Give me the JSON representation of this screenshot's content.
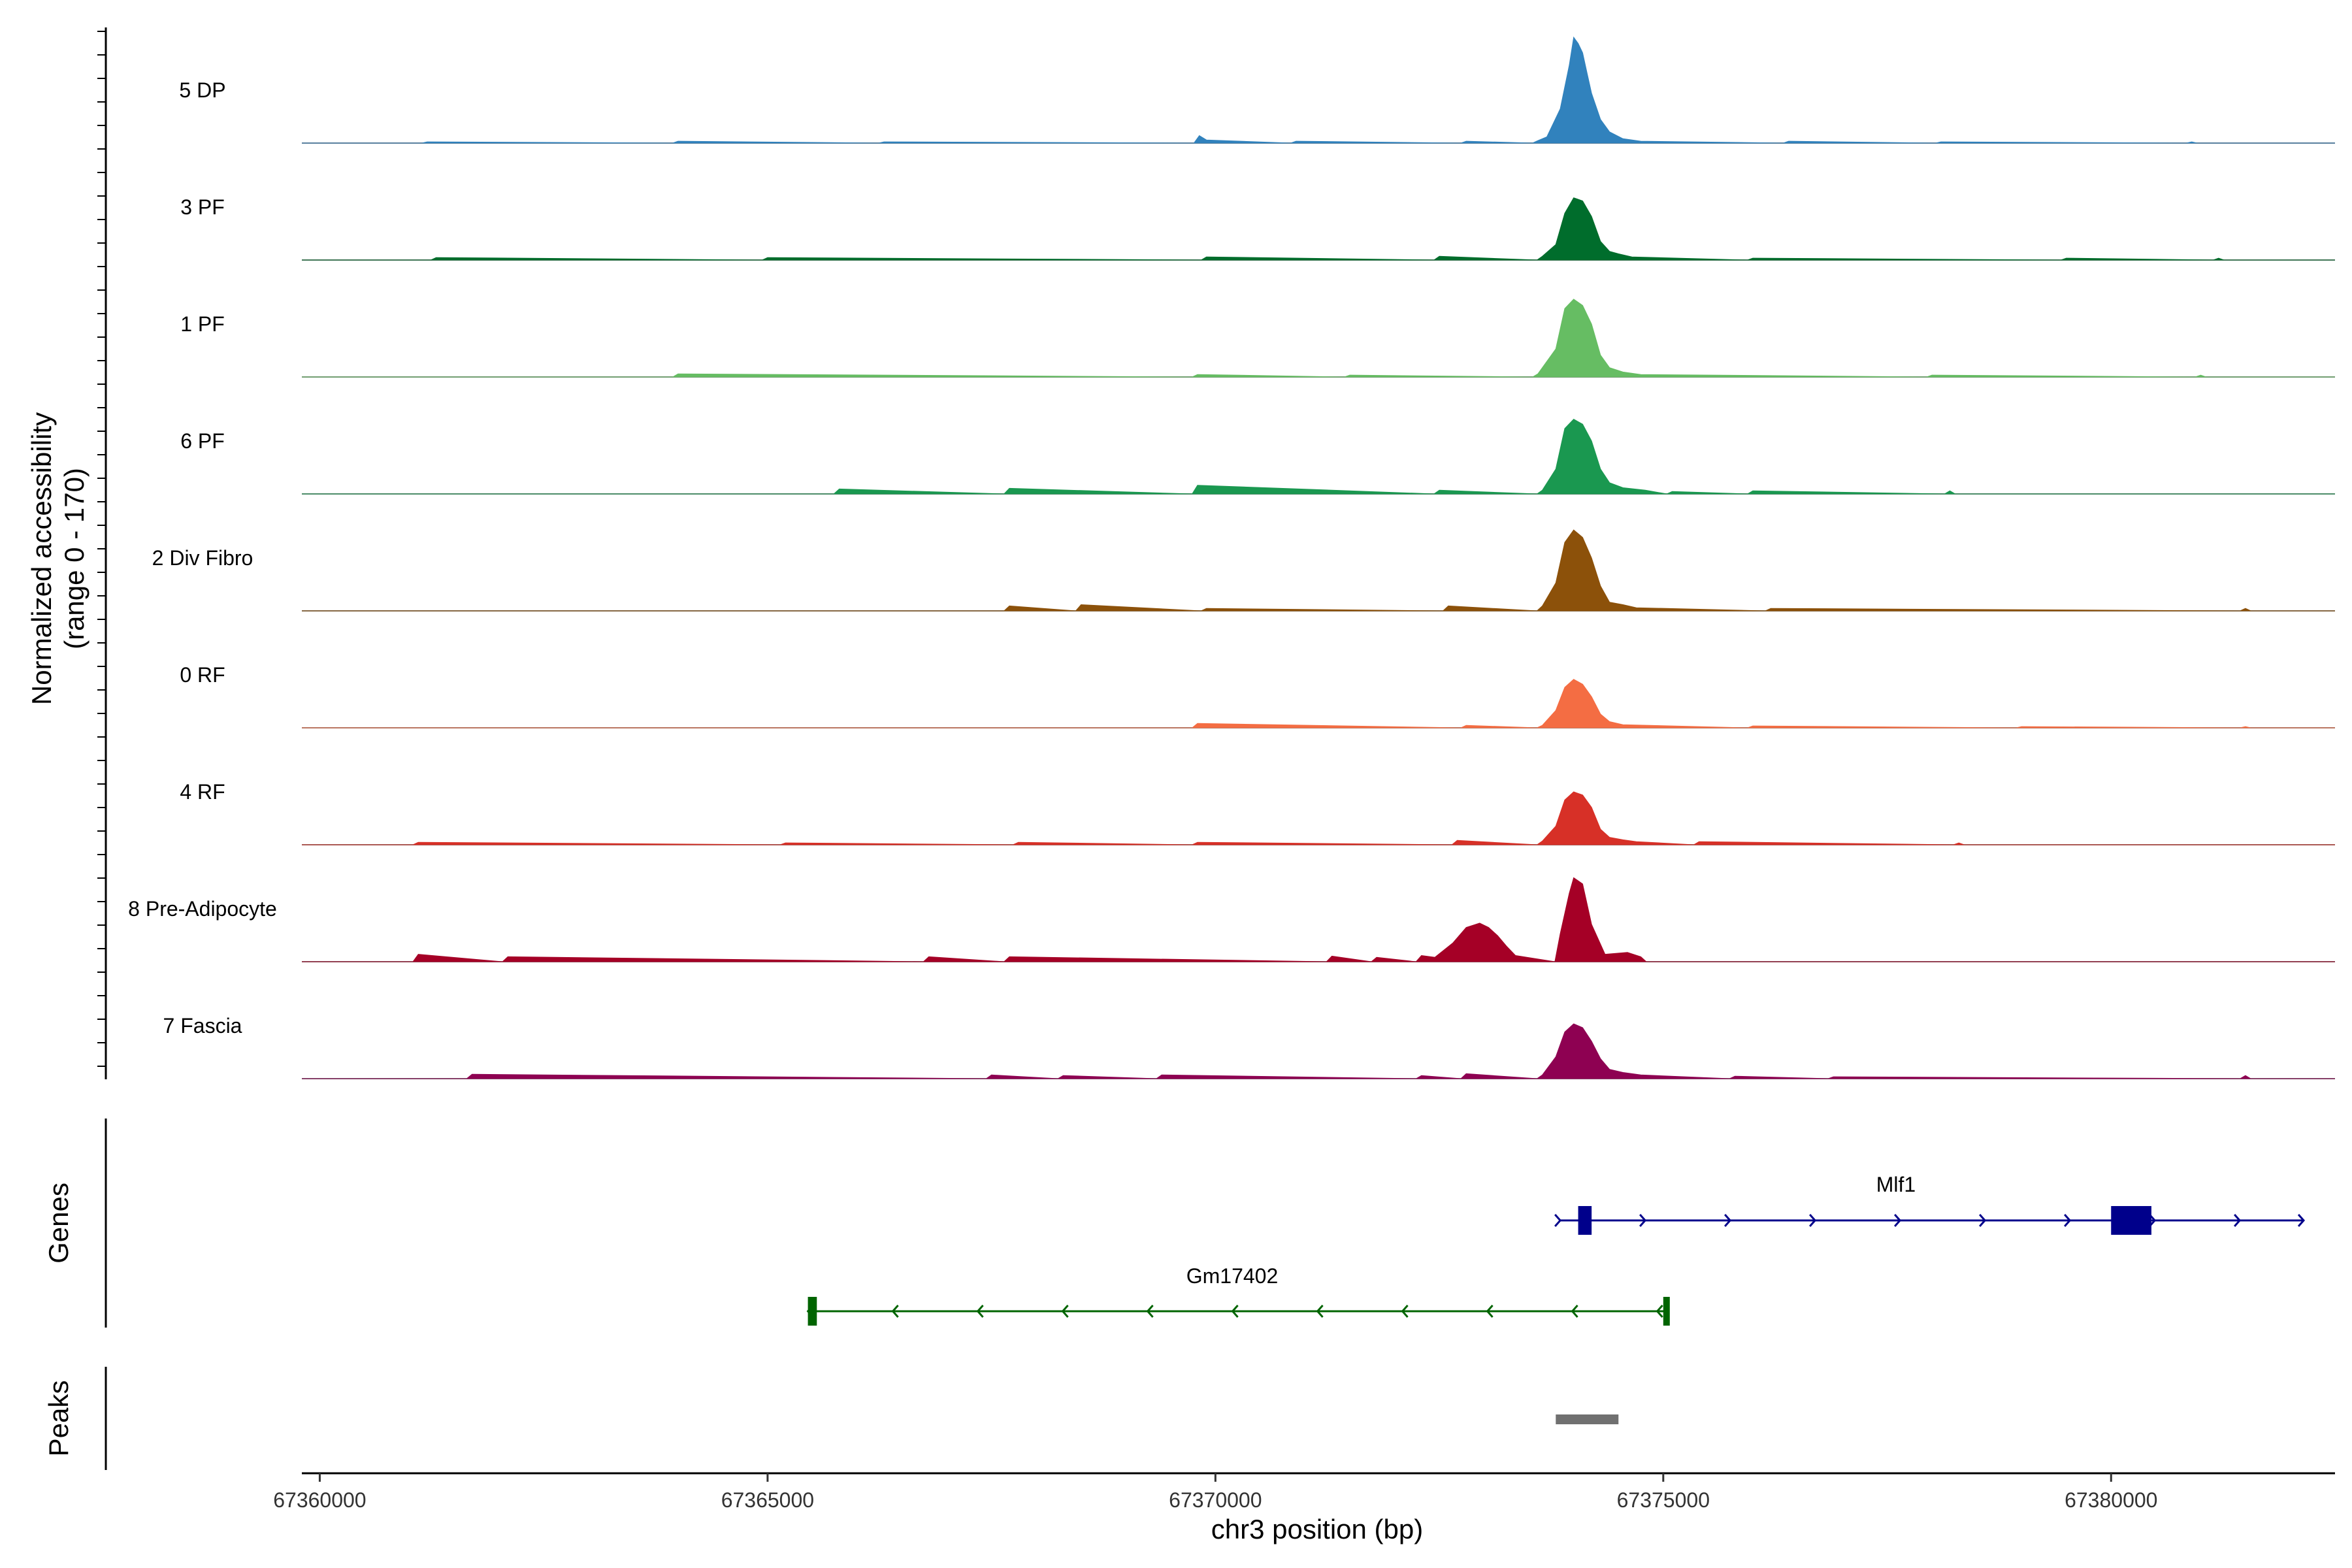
{
  "chart_data": {
    "type": "area",
    "title": "",
    "xlabel": "chr3 position (bp)",
    "ylabel": "Normalized accessibility",
    "ylabel_range": "(range 0 - 170)",
    "xlim": [
      67359800,
      67382500
    ],
    "ylim": [
      0,
      170
    ],
    "x_ticks": [
      67360000,
      67365000,
      67370000,
      67375000,
      67380000
    ],
    "x_tick_labels": [
      "67360000",
      "67365000",
      "67370000",
      "67375000",
      "67380000"
    ],
    "series": [
      {
        "name": "5 DP",
        "color": "#3182BD",
        "points": [
          [
            67373600,
            4
          ],
          [
            67373700,
            10
          ],
          [
            67373850,
            55
          ],
          [
            67373950,
            125
          ],
          [
            67374000,
            170
          ],
          [
            67374050,
            160
          ],
          [
            67374100,
            145
          ],
          [
            67374150,
            112
          ],
          [
            67374200,
            80
          ],
          [
            67374300,
            38
          ],
          [
            67374400,
            18
          ],
          [
            67374550,
            7
          ],
          [
            67374750,
            3
          ],
          [
            67369820,
            12
          ],
          [
            67369900,
            5
          ],
          [
            67364000,
            3
          ],
          [
            67361200,
            2
          ],
          [
            67366300,
            2
          ],
          [
            67370900,
            3
          ],
          [
            67372800,
            3
          ],
          [
            67376400,
            3
          ],
          [
            67378100,
            2
          ],
          [
            67380900,
            2
          ]
        ]
      },
      {
        "name": "3 PF",
        "color": "#006D2C",
        "points": [
          [
            67373650,
            6
          ],
          [
            67373800,
            25
          ],
          [
            67373900,
            75
          ],
          [
            67374000,
            100
          ],
          [
            67374100,
            95
          ],
          [
            67374200,
            70
          ],
          [
            67374300,
            30
          ],
          [
            67374400,
            14
          ],
          [
            67374500,
            10
          ],
          [
            67374650,
            5
          ],
          [
            67361300,
            4
          ],
          [
            67365000,
            4
          ],
          [
            67369900,
            5
          ],
          [
            67372500,
            6
          ],
          [
            67376000,
            3
          ],
          [
            67379500,
            3
          ],
          [
            67381200,
            3
          ]
        ]
      },
      {
        "name": "1 PF",
        "color": "#66BD63",
        "points": [
          [
            67373600,
            5
          ],
          [
            67373800,
            45
          ],
          [
            67373900,
            110
          ],
          [
            67374000,
            125
          ],
          [
            67374100,
            115
          ],
          [
            67374200,
            85
          ],
          [
            67374300,
            35
          ],
          [
            67374400,
            15
          ],
          [
            67374550,
            8
          ],
          [
            67374750,
            4
          ],
          [
            67364000,
            5
          ],
          [
            67369800,
            4
          ],
          [
            67371500,
            3
          ],
          [
            67378000,
            3
          ],
          [
            67381000,
            3
          ]
        ]
      },
      {
        "name": "6 PF",
        "color": "#1A9850",
        "points": [
          [
            67373650,
            6
          ],
          [
            67373800,
            40
          ],
          [
            67373900,
            105
          ],
          [
            67374000,
            120
          ],
          [
            67374100,
            112
          ],
          [
            67374200,
            85
          ],
          [
            67374300,
            40
          ],
          [
            67374400,
            18
          ],
          [
            67374550,
            10
          ],
          [
            67374800,
            6
          ],
          [
            67375100,
            4
          ],
          [
            67369800,
            14
          ],
          [
            67365800,
            8
          ],
          [
            67367700,
            9
          ],
          [
            67372500,
            6
          ],
          [
            67376000,
            5
          ],
          [
            67378200,
            5
          ]
        ]
      },
      {
        "name": "2 Div Fibro",
        "color": "#8C510A",
        "points": [
          [
            67373650,
            8
          ],
          [
            67373800,
            45
          ],
          [
            67373900,
            110
          ],
          [
            67374000,
            130
          ],
          [
            67374100,
            118
          ],
          [
            67374200,
            85
          ],
          [
            67374300,
            40
          ],
          [
            67374400,
            14
          ],
          [
            67374550,
            10
          ],
          [
            67374700,
            5
          ],
          [
            67372600,
            8
          ],
          [
            67367700,
            8
          ],
          [
            67368500,
            10
          ],
          [
            67369900,
            4
          ],
          [
            67376200,
            4
          ],
          [
            67381500,
            4
          ]
        ]
      },
      {
        "name": "0 RF",
        "color": "#F46D43",
        "points": [
          [
            67373650,
            4
          ],
          [
            67373800,
            28
          ],
          [
            67373900,
            65
          ],
          [
            67374000,
            78
          ],
          [
            67374100,
            70
          ],
          [
            67374200,
            50
          ],
          [
            67374300,
            22
          ],
          [
            67374400,
            10
          ],
          [
            67374550,
            5
          ],
          [
            67369800,
            7
          ],
          [
            67372800,
            4
          ],
          [
            67376000,
            3
          ],
          [
            67379000,
            2
          ],
          [
            67381500,
            2
          ]
        ]
      },
      {
        "name": "4 RF",
        "color": "#D73027",
        "points": [
          [
            67373650,
            6
          ],
          [
            67373800,
            30
          ],
          [
            67373900,
            72
          ],
          [
            67374000,
            85
          ],
          [
            67374100,
            80
          ],
          [
            67374200,
            60
          ],
          [
            67374300,
            25
          ],
          [
            67374400,
            12
          ],
          [
            67374550,
            8
          ],
          [
            67374700,
            5
          ],
          [
            67375400,
            5
          ],
          [
            67372700,
            7
          ],
          [
            67369800,
            4
          ],
          [
            67361100,
            4
          ],
          [
            67365200,
            3
          ],
          [
            67367800,
            4
          ],
          [
            67378300,
            3
          ]
        ]
      },
      {
        "name": "8 Pre-Adipocyte",
        "color": "#A50026",
        "points": [
          [
            67361100,
            12
          ],
          [
            67362100,
            8
          ],
          [
            67366800,
            8
          ],
          [
            67367700,
            8
          ],
          [
            67371300,
            9
          ],
          [
            67371800,
            7
          ],
          [
            67372300,
            10
          ],
          [
            67372450,
            7
          ],
          [
            67372650,
            30
          ],
          [
            67372800,
            55
          ],
          [
            67372950,
            62
          ],
          [
            67373050,
            55
          ],
          [
            67373150,
            42
          ],
          [
            67373250,
            25
          ],
          [
            67373350,
            10
          ],
          [
            67373850,
            45
          ],
          [
            67373950,
            110
          ],
          [
            67374000,
            135
          ],
          [
            67374100,
            125
          ],
          [
            67374200,
            60
          ],
          [
            67374350,
            12
          ],
          [
            67374600,
            15
          ],
          [
            67374750,
            8
          ]
        ]
      },
      {
        "name": "7 Fascia",
        "color": "#8E0152",
        "points": [
          [
            67373650,
            6
          ],
          [
            67373800,
            35
          ],
          [
            67373900,
            75
          ],
          [
            67374000,
            88
          ],
          [
            67374100,
            82
          ],
          [
            67374200,
            60
          ],
          [
            67374300,
            32
          ],
          [
            67374400,
            15
          ],
          [
            67374550,
            10
          ],
          [
            67374750,
            6
          ],
          [
            67372800,
            8
          ],
          [
            67372300,
            5
          ],
          [
            67361700,
            7
          ],
          [
            67367500,
            6
          ],
          [
            67368300,
            5
          ],
          [
            67369400,
            6
          ],
          [
            67375800,
            4
          ],
          [
            67376900,
            3
          ],
          [
            67381500,
            5
          ]
        ]
      }
    ],
    "genes": [
      {
        "name": "Mlf1",
        "strand": "+",
        "color": "#00008B",
        "start": 67373850,
        "end": 67382150,
        "exons": [
          [
            67374050,
            67374200
          ],
          [
            67380000,
            67380450
          ]
        ]
      },
      {
        "name": "Gm17402",
        "strand": "-",
        "color": "#006400",
        "start": 67365450,
        "end": 67375050,
        "exons": [
          [
            67365450,
            67365550
          ],
          [
            67375000,
            67375050
          ]
        ]
      }
    ],
    "peaks": [
      {
        "start": 67373800,
        "end": 67374500,
        "color": "#707070"
      }
    ],
    "y_axis_sections": [
      "Genes",
      "Peaks"
    ]
  }
}
